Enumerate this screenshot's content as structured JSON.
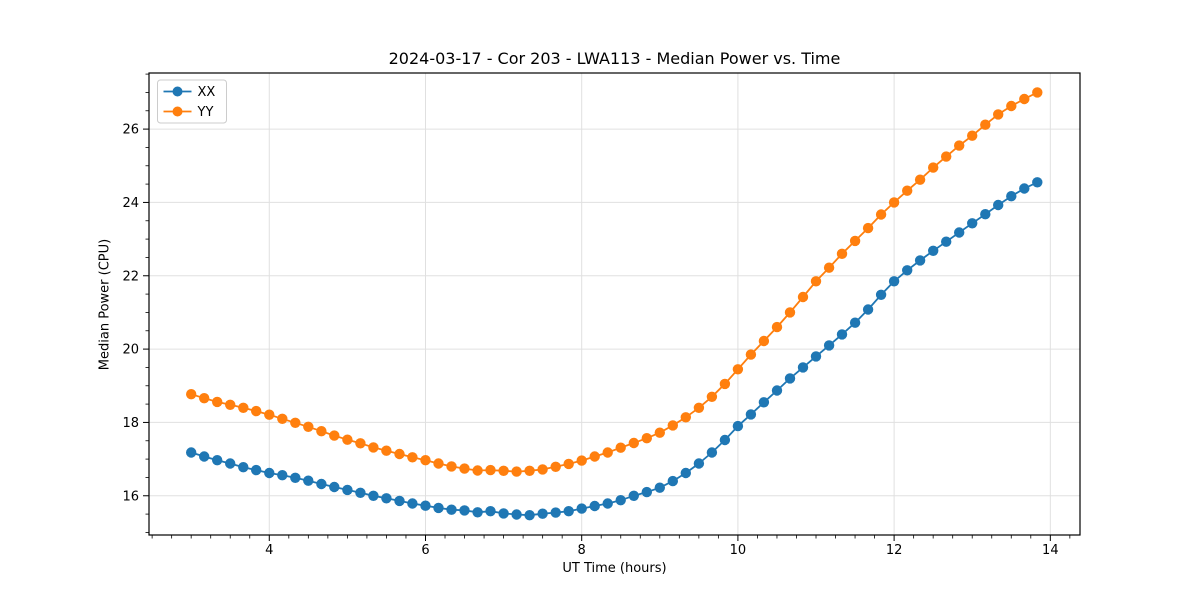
{
  "chart_data": {
    "type": "line",
    "title": "2024-03-17 - Cor 203 - LWA113 - Median Power vs. Time",
    "xlabel": "UT Time (hours)",
    "ylabel": "Median Power (CPU)",
    "xlim": [
      2.46,
      14.38
    ],
    "ylim": [
      14.93,
      27.53
    ],
    "x_major_ticks": [
      4,
      6,
      8,
      10,
      12,
      14
    ],
    "y_major_ticks": [
      16,
      18,
      20,
      22,
      24,
      26
    ],
    "x_minor_step": 0.25,
    "y_minor_step": 0.5,
    "grid": true,
    "legend_position": "upper left",
    "marker": "circle",
    "colors": {
      "grid": "#e0e0e0",
      "spine": "#000000",
      "legend_border": "#cccccc",
      "background": "#ffffff"
    },
    "x": [
      3.0,
      3.167,
      3.333,
      3.5,
      3.667,
      3.833,
      4.0,
      4.167,
      4.333,
      4.5,
      4.667,
      4.833,
      5.0,
      5.167,
      5.333,
      5.5,
      5.667,
      5.833,
      6.0,
      6.167,
      6.333,
      6.5,
      6.667,
      6.833,
      7.0,
      7.167,
      7.333,
      7.5,
      7.667,
      7.833,
      8.0,
      8.167,
      8.333,
      8.5,
      8.667,
      8.833,
      9.0,
      9.167,
      9.333,
      9.5,
      9.667,
      9.833,
      10.0,
      10.167,
      10.333,
      10.5,
      10.667,
      10.833,
      11.0,
      11.167,
      11.333,
      11.5,
      11.667,
      11.833,
      12.0,
      12.167,
      12.333,
      12.5,
      12.667,
      12.833,
      13.0,
      13.167,
      13.333,
      13.5,
      13.667,
      13.833
    ],
    "series": [
      {
        "name": "XX",
        "color": "#1f77b4",
        "values": [
          17.18,
          17.07,
          16.97,
          16.88,
          16.78,
          16.7,
          16.62,
          16.56,
          16.49,
          16.41,
          16.32,
          16.24,
          16.16,
          16.08,
          16.0,
          15.93,
          15.86,
          15.79,
          15.73,
          15.67,
          15.62,
          15.6,
          15.55,
          15.58,
          15.52,
          15.49,
          15.47,
          15.51,
          15.54,
          15.58,
          15.65,
          15.72,
          15.79,
          15.88,
          16.0,
          16.1,
          16.22,
          16.4,
          16.62,
          16.88,
          17.18,
          17.52,
          17.9,
          18.22,
          18.55,
          18.87,
          19.2,
          19.5,
          19.8,
          20.1,
          20.4,
          20.72,
          21.08,
          21.48,
          21.85,
          22.15,
          22.42,
          22.68,
          22.93,
          23.18,
          23.43,
          23.68,
          23.93,
          24.17,
          24.38,
          24.55
        ]
      },
      {
        "name": "YY",
        "color": "#ff7f0e",
        "values": [
          18.77,
          18.66,
          18.56,
          18.48,
          18.4,
          18.31,
          18.21,
          18.1,
          17.99,
          17.88,
          17.76,
          17.64,
          17.53,
          17.43,
          17.32,
          17.23,
          17.14,
          17.05,
          16.97,
          16.88,
          16.8,
          16.74,
          16.69,
          16.7,
          16.68,
          16.66,
          16.68,
          16.72,
          16.79,
          16.87,
          16.96,
          17.07,
          17.18,
          17.31,
          17.44,
          17.57,
          17.72,
          17.92,
          18.14,
          18.4,
          18.7,
          19.05,
          19.45,
          19.85,
          20.22,
          20.6,
          21.0,
          21.42,
          21.85,
          22.22,
          22.6,
          22.95,
          23.3,
          23.67,
          24.0,
          24.32,
          24.62,
          24.95,
          25.25,
          25.55,
          25.82,
          26.12,
          26.4,
          26.63,
          26.82,
          27.0
        ]
      }
    ]
  }
}
